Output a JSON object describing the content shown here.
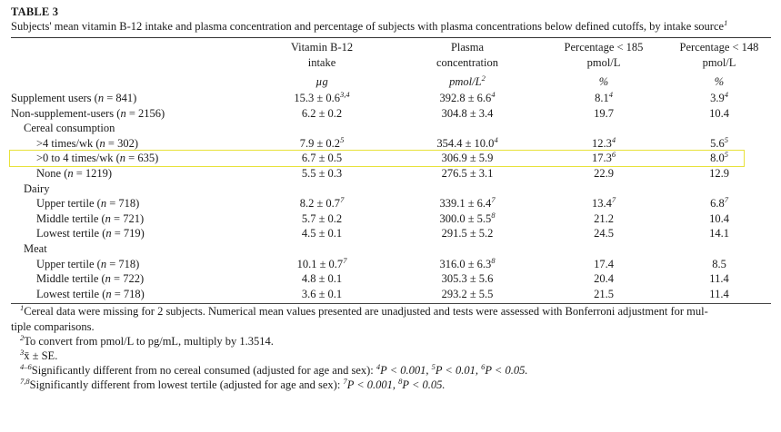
{
  "table_label": "TABLE 3",
  "caption_main": "Subjects' mean vitamin B-12 intake and plasma concentration and percentage of subjects with plasma concentrations below defined cutoffs, by intake source",
  "caption_sup": "1",
  "headers": [
    {
      "line1": "",
      "line2": ""
    },
    {
      "line1": "Vitamin B-12",
      "line2": "intake"
    },
    {
      "line1": "Plasma",
      "line2": "concentration"
    },
    {
      "line1": "Percentage < 185",
      "line2": "pmol/L"
    },
    {
      "line1": "Percentage < 148",
      "line2": "pmol/L"
    }
  ],
  "units": {
    "intake": "µg",
    "plasma": "pmol/L",
    "plasma_sup": "2",
    "pct185": "%",
    "pct148": "%"
  },
  "rows": [
    {
      "label": "Supplement users (",
      "n_italic": "n",
      "n_rest": " = 841)",
      "indent": 0,
      "intake": "15.3 ± 0.6",
      "intake_sup": "3,4",
      "plasma": "392.8 ± 6.6",
      "plasma_sup": "4",
      "p185": "8.1",
      "p185_sup": "4",
      "p148": "3.9",
      "p148_sup": "4"
    },
    {
      "label": "Non-supplement-users (",
      "n_italic": "n",
      "n_rest": " = 2156)",
      "indent": 0,
      "intake": "6.2 ± 0.2",
      "intake_sup": "",
      "plasma": "304.8 ± 3.4",
      "plasma_sup": "",
      "p185": "19.7",
      "p185_sup": "",
      "p148": "10.4",
      "p148_sup": ""
    },
    {
      "label": "Cereal consumption",
      "n_italic": "",
      "n_rest": "",
      "indent": 1,
      "intake": "",
      "intake_sup": "",
      "plasma": "",
      "plasma_sup": "",
      "p185": "",
      "p185_sup": "",
      "p148": "",
      "p148_sup": ""
    },
    {
      "label": ">4 times/wk (",
      "n_italic": "n",
      "n_rest": " = 302)",
      "indent": 2,
      "intake": "7.9 ± 0.2",
      "intake_sup": "5",
      "plasma": "354.4 ± 10.0",
      "plasma_sup": "4",
      "p185": "12.3",
      "p185_sup": "4",
      "p148": "5.6",
      "p148_sup": "5"
    },
    {
      "label": ">0 to 4 times/wk (",
      "n_italic": "n",
      "n_rest": " = 635)",
      "indent": 2,
      "intake": "6.7 ± 0.5",
      "intake_sup": "",
      "plasma": "306.9 ± 5.9",
      "plasma_sup": "",
      "p185": "17.3",
      "p185_sup": "6",
      "p148": "8.0",
      "p148_sup": "5"
    },
    {
      "label": "None (",
      "n_italic": "n",
      "n_rest": " = 1219)",
      "indent": 2,
      "intake": "5.5 ± 0.3",
      "intake_sup": "",
      "plasma": "276.5 ± 3.1",
      "plasma_sup": "",
      "p185": "22.9",
      "p185_sup": "",
      "p148": "12.9",
      "p148_sup": ""
    },
    {
      "label": "Dairy",
      "n_italic": "",
      "n_rest": "",
      "indent": 1,
      "intake": "",
      "intake_sup": "",
      "plasma": "",
      "plasma_sup": "",
      "p185": "",
      "p185_sup": "",
      "p148": "",
      "p148_sup": ""
    },
    {
      "label": "Upper tertile (",
      "n_italic": "n",
      "n_rest": " = 718)",
      "indent": 2,
      "intake": "8.2 ± 0.7",
      "intake_sup": "7",
      "plasma": "339.1 ± 6.4",
      "plasma_sup": "7",
      "p185": "13.4",
      "p185_sup": "7",
      "p148": "6.8",
      "p148_sup": "7"
    },
    {
      "label": "Middle tertile (",
      "n_italic": "n",
      "n_rest": " = 721)",
      "indent": 2,
      "intake": "5.7 ± 0.2",
      "intake_sup": "",
      "plasma": "300.0 ± 5.5",
      "plasma_sup": "8",
      "p185": "21.2",
      "p185_sup": "",
      "p148": "10.4",
      "p148_sup": ""
    },
    {
      "label": "Lowest tertile (",
      "n_italic": "n",
      "n_rest": " = 719)",
      "indent": 2,
      "intake": "4.5 ± 0.1",
      "intake_sup": "",
      "plasma": "291.5 ± 5.2",
      "plasma_sup": "",
      "p185": "24.5",
      "p185_sup": "",
      "p148": "14.1",
      "p148_sup": ""
    },
    {
      "label": "Meat",
      "n_italic": "",
      "n_rest": "",
      "indent": 1,
      "intake": "",
      "intake_sup": "",
      "plasma": "",
      "plasma_sup": "",
      "p185": "",
      "p185_sup": "",
      "p148": "",
      "p148_sup": ""
    },
    {
      "label": "Upper tertile (",
      "n_italic": "n",
      "n_rest": " = 718)",
      "indent": 2,
      "intake": "10.1 ± 0.7",
      "intake_sup": "7",
      "plasma": "316.0 ± 6.3",
      "plasma_sup": "8",
      "p185": "17.4",
      "p185_sup": "",
      "p148": "8.5",
      "p148_sup": ""
    },
    {
      "label": "Middle tertile (",
      "n_italic": "n",
      "n_rest": " = 722)",
      "indent": 2,
      "intake": "4.8 ± 0.1",
      "intake_sup": "",
      "plasma": "305.3 ± 5.6",
      "plasma_sup": "",
      "p185": "20.4",
      "p185_sup": "",
      "p148": "11.4",
      "p148_sup": ""
    },
    {
      "label": "Lowest tertile (",
      "n_italic": "n",
      "n_rest": " = 718)",
      "indent": 2,
      "intake": "3.6 ± 0.1",
      "intake_sup": "",
      "plasma": "293.2 ± 5.5",
      "plasma_sup": "",
      "p185": "21.5",
      "p185_sup": "",
      "p148": "11.4",
      "p148_sup": ""
    }
  ],
  "footnotes": {
    "fn1_sup": "1",
    "fn1": "Cereal data were missing for 2 subjects. Numerical mean values presented are unadjusted and tests were assessed with Bonferroni adjustment for mul-",
    "fn1_cont": "tiple comparisons.",
    "fn2_sup": "2",
    "fn2": "To convert from pmol/L to pg/mL, multiply by 1.3514.",
    "fn3_sup": "3",
    "fn3": "x̄ ± SE.",
    "fn4_sup": "4–6",
    "fn4_text": "Significantly different from no cereal consumed (adjusted for age and sex): ",
    "fn4_p4_sup": "4",
    "fn4_p4": "P < 0.001, ",
    "fn4_p5_sup": "5",
    "fn4_p5": "P < 0.01, ",
    "fn4_p6_sup": "6",
    "fn4_p6": "P < 0.05.",
    "fn7_sup": "7,8",
    "fn7_text": "Significantly different from lowest tertile (adjusted for age and sex): ",
    "fn7_p7_sup": "7",
    "fn7_p7": "P < 0.001, ",
    "fn7_p8_sup": "8",
    "fn7_p8": "P < 0.05."
  }
}
